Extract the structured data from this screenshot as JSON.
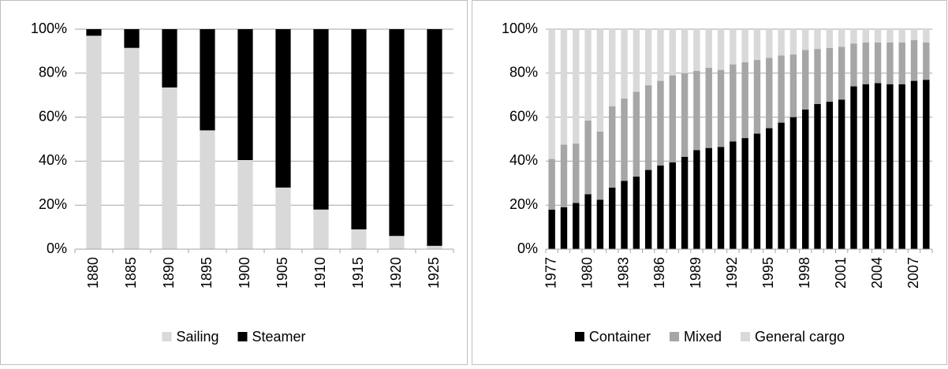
{
  "chart_data": [
    {
      "type": "stacked_bar",
      "categories": [
        "1880",
        "1885",
        "1890",
        "1895",
        "1900",
        "1905",
        "1910",
        "1915",
        "1920",
        "1925"
      ],
      "series": [
        {
          "name": "Sailing",
          "color": "#d9d9d9",
          "values": [
            97,
            91.5,
            73.5,
            54,
            40.5,
            28,
            18,
            9,
            6,
            1.5
          ]
        },
        {
          "name": "Steamer",
          "color": "#000000",
          "values": [
            3,
            8.5,
            26.5,
            46,
            59.5,
            72,
            82,
            91,
            94,
            98.5
          ]
        }
      ],
      "ylim": [
        0,
        100
      ],
      "yticks": [
        {
          "value": 0,
          "label": "0%"
        },
        {
          "value": 20,
          "label": "20%"
        },
        {
          "value": 40,
          "label": "40%"
        },
        {
          "value": 60,
          "label": "60%"
        },
        {
          "value": 80,
          "label": "80%"
        },
        {
          "value": 100,
          "label": "100%"
        }
      ],
      "grid": true,
      "legend": "bottom"
    },
    {
      "type": "stacked_bar",
      "categories": [
        "1977",
        null,
        null,
        "1980",
        null,
        null,
        "1983",
        null,
        null,
        "1986",
        null,
        null,
        "1989",
        null,
        null,
        "1992",
        null,
        null,
        "1995",
        null,
        null,
        "1998",
        null,
        null,
        "2001",
        null,
        null,
        "2004",
        null,
        null,
        "2007",
        null
      ],
      "series": [
        {
          "name": "Container",
          "color": "#000000",
          "values": [
            18,
            19,
            21,
            25,
            22.5,
            28,
            31,
            33,
            36,
            38,
            39.5,
            42,
            45,
            46,
            46.5,
            49,
            50.5,
            52.5,
            55,
            57.5,
            60,
            63.5,
            66,
            67,
            68,
            74,
            75,
            75.5,
            75,
            75,
            76.5,
            77
          ]
        },
        {
          "name": "Mixed",
          "color": "#a6a6a6",
          "values": [
            23,
            28.5,
            27,
            33.5,
            31,
            37,
            37.5,
            38.5,
            38.5,
            38.5,
            39.5,
            38,
            36,
            36.5,
            35,
            35,
            34.5,
            33.5,
            32,
            30.5,
            28.5,
            27,
            25,
            24.5,
            24,
            19.5,
            19,
            18.5,
            19,
            19,
            18.5,
            17
          ]
        },
        {
          "name": "General cargo",
          "color": "#d9d9d9",
          "values": [
            59,
            52.5,
            52,
            41.5,
            46.5,
            35,
            31.5,
            28.5,
            25.5,
            23.5,
            21,
            20,
            19,
            17.5,
            18.5,
            16,
            15,
            14,
            13,
            12,
            11.5,
            9.5,
            9,
            8.5,
            8,
            6.5,
            6,
            6,
            6,
            6,
            5,
            6
          ]
        }
      ],
      "ylim": [
        0,
        100
      ],
      "yticks": [
        {
          "value": 0,
          "label": "0%"
        },
        {
          "value": 20,
          "label": "20%"
        },
        {
          "value": 40,
          "label": "40%"
        },
        {
          "value": 60,
          "label": "60%"
        },
        {
          "value": 80,
          "label": "80%"
        },
        {
          "value": 100,
          "label": "100%"
        }
      ],
      "grid": true,
      "legend": "bottom"
    }
  ]
}
